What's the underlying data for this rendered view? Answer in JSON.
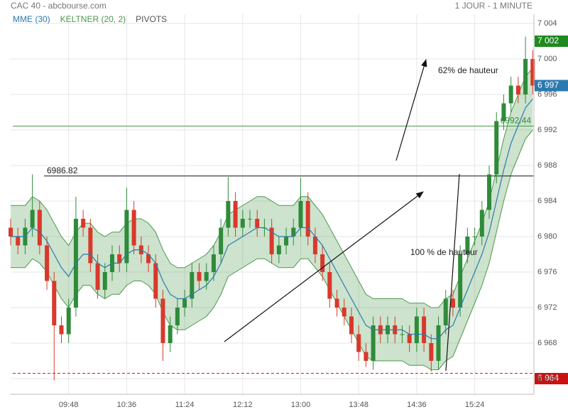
{
  "chart_data": {
    "type": "candlestick",
    "title": "CAC 40 - abcbourse.com",
    "subtitle": "1 JOUR - 1 MINUTE",
    "legend": [
      {
        "name": "MME (30)",
        "color": "#2a7ab0"
      },
      {
        "name": "KELTNER (20, 2)",
        "color": "#4a9a4a"
      },
      {
        "name": "PIVOTS",
        "color": "#555555"
      }
    ],
    "x": [
      "09:00",
      "09:06",
      "09:12",
      "09:18",
      "09:24",
      "09:30",
      "09:36",
      "09:42",
      "09:48",
      "09:54",
      "10:00",
      "10:06",
      "10:12",
      "10:18",
      "10:24",
      "10:30",
      "10:36",
      "10:42",
      "10:48",
      "10:54",
      "11:00",
      "11:06",
      "11:12",
      "11:18",
      "11:24",
      "11:30",
      "11:36",
      "11:42",
      "11:48",
      "11:54",
      "12:00",
      "12:06",
      "12:12",
      "12:18",
      "12:24",
      "12:30",
      "12:36",
      "12:42",
      "12:48",
      "12:54",
      "13:00",
      "13:06",
      "13:12",
      "13:18",
      "13:24",
      "13:30",
      "13:36",
      "13:42",
      "13:48",
      "13:54",
      "14:00",
      "14:06",
      "14:12",
      "14:18",
      "14:24",
      "14:30",
      "14:36",
      "14:42",
      "14:48",
      "14:54",
      "15:00",
      "15:06",
      "15:12",
      "15:18",
      "15:24",
      "15:30",
      "15:36",
      "15:42",
      "15:48",
      "15:54",
      "16:00",
      "16:06",
      "16:12"
    ],
    "open": [
      6981,
      6980,
      6979,
      6981,
      6983,
      6979,
      6975,
      6970,
      6969,
      6972,
      6982,
      6981,
      6977,
      6974,
      6976,
      6978,
      6977,
      6983,
      6979,
      6978,
      6977,
      6973,
      6968,
      6970,
      6972,
      6973,
      6976,
      6975,
      6976,
      6978,
      6981,
      6984,
      6981,
      6982,
      6982,
      6981,
      6981,
      6978,
      6979,
      6980,
      6981,
      6984,
      6980,
      6978,
      6976,
      6973,
      6972,
      6971,
      6969,
      6967,
      6966,
      6970,
      6969,
      6970,
      6969,
      6969,
      6968,
      6971,
      6968,
      6966,
      6970,
      6973,
      6972,
      6978,
      6980,
      6980,
      6983,
      6987,
      6993,
      6995,
      6997,
      6996,
      7000
    ],
    "high": [
      6982,
      6981,
      6982,
      6987,
      6984,
      6980,
      6976,
      6971,
      6973,
      6984.5,
      6983,
      6982,
      6978,
      6977,
      6979,
      6979,
      6985.5,
      6984,
      6980,
      6979,
      6978,
      6974,
      6971,
      6973,
      6974,
      6977,
      6977,
      6977,
      6979,
      6982,
      6986.7,
      6985,
      6983,
      6983,
      6983,
      6982,
      6982,
      6980,
      6981,
      6982,
      6986.6,
      6985,
      6981,
      6979,
      6977,
      6974,
      6973,
      6972,
      6970,
      6968,
      6971,
      6971,
      6971,
      6971,
      6970,
      6970,
      6972,
      6972,
      6969,
      6971,
      6974,
      6974,
      6979,
      6981,
      6981,
      6984,
      6988,
      6994,
      6996,
      6998,
      6998,
      7002.5,
      7001
    ],
    "low": [
      6979,
      6978,
      6978,
      6980,
      6978,
      6974,
      6963.8,
      6968,
      6968,
      6971,
      6980,
      6976,
      6973,
      6973,
      6975,
      6976,
      6976,
      6978,
      6977,
      6976,
      6972,
      6966,
      6967,
      6969,
      6971,
      6972,
      6974,
      6974,
      6975,
      6977,
      6980,
      6980,
      6980,
      6981,
      6980,
      6980,
      6977,
      6977,
      6978,
      6979,
      6980,
      6979,
      6977,
      6975,
      6972,
      6971,
      6970,
      6968,
      6966,
      6965.3,
      6965,
      6968,
      6968,
      6968,
      6968,
      6967,
      6967,
      6967,
      6964.8,
      6965,
      6969,
      6971,
      6971,
      6977,
      6979,
      6979,
      6982,
      6986,
      6992,
      6994,
      6995,
      6995,
      6996
    ],
    "close": [
      6980,
      6979,
      6981,
      6983,
      6979,
      6975,
      6970,
      6969,
      6972,
      6982,
      6981,
      6977,
      6974,
      6976,
      6978,
      6977,
      6983,
      6979,
      6978,
      6977,
      6973,
      6968,
      6970,
      6972,
      6973,
      6976,
      6975,
      6976,
      6978,
      6981,
      6984,
      6981,
      6982,
      6982,
      6981,
      6981,
      6978,
      6979,
      6980,
      6981,
      6984,
      6980,
      6978,
      6976,
      6973,
      6972,
      6971,
      6969,
      6967,
      6966,
      6970,
      6969,
      6970,
      6969,
      6969,
      6968,
      6971,
      6968,
      6966,
      6970,
      6973,
      6972,
      6978,
      6980,
      6980,
      6983,
      6987,
      6993,
      6995,
      6997,
      6996,
      7000,
      6997
    ],
    "up_color": "#2e8b3a",
    "down_color": "#d8392b",
    "series": [
      {
        "name": "MME (30)",
        "color": "#2a7ab0",
        "values": [
          6980,
          6980,
          6980,
          6981,
          6980.5,
          6979.5,
          6978,
          6976.5,
          6975.5,
          6977,
          6978,
          6978,
          6977,
          6976.5,
          6977,
          6977,
          6978,
          6978.5,
          6978.5,
          6978,
          6977,
          6975,
          6973.5,
          6973,
          6973,
          6973.5,
          6974,
          6974.5,
          6975.5,
          6977,
          6979,
          6979.5,
          6980,
          6980.5,
          6981,
          6981,
          6980.5,
          6980,
          6980,
          6980,
          6981,
          6981,
          6980,
          6979,
          6977.5,
          6976,
          6974.5,
          6973,
          6971.5,
          6970,
          6969.5,
          6969.5,
          6969.5,
          6969.5,
          6969.5,
          6969,
          6969,
          6969,
          6968.5,
          6968.5,
          6969.5,
          6970,
          6972,
          6974,
          6976,
          6978,
          6980.5,
          6984,
          6987.5,
          6990.5,
          6992.5,
          6994.5,
          6995.5
        ]
      },
      {
        "name": "KELTNER (20, 2)",
        "color": "#4a9a4a",
        "values": [
          6983.5,
          6983.5,
          6983.5,
          6984.5,
          6984,
          6983,
          6981.5,
          6980,
          6979,
          6980.5,
          6981.5,
          6981.5,
          6980.5,
          6980,
          6980.5,
          6980.5,
          6981.5,
          6982,
          6982,
          6981.5,
          6980.5,
          6978.5,
          6977,
          6976.5,
          6976.5,
          6977,
          6977.5,
          6978,
          6979,
          6980.5,
          6982.5,
          6983,
          6983.5,
          6984,
          6984.5,
          6984.5,
          6984,
          6983.5,
          6983.5,
          6983.5,
          6984.5,
          6984.5,
          6983.5,
          6982.5,
          6981,
          6979.5,
          6978,
          6976.5,
          6975,
          6973.5,
          6973,
          6973,
          6973,
          6973,
          6973,
          6972.5,
          6972.5,
          6972.5,
          6972,
          6972,
          6973,
          6973.5,
          6975.5,
          6977.5,
          6979.5,
          6981.5,
          6984,
          6987.5,
          6991,
          6994,
          6996,
          6998,
          6999
        ],
        "lower": [
          6976.5,
          6976.5,
          6976.5,
          6977.5,
          6977,
          6976,
          6974.5,
          6973,
          6972,
          6973.5,
          6974.5,
          6974.5,
          6973.5,
          6973,
          6973.5,
          6973.5,
          6974.5,
          6975,
          6975,
          6974.5,
          6973.5,
          6971.5,
          6970,
          6969.5,
          6969.5,
          6970,
          6970.5,
          6971,
          6972,
          6973.5,
          6975.5,
          6976,
          6976.5,
          6977,
          6977.5,
          6977.5,
          6977,
          6976.5,
          6976.5,
          6976.5,
          6977.5,
          6977.5,
          6976.5,
          6975.5,
          6974,
          6972.5,
          6971,
          6969.5,
          6968,
          6966.5,
          6966,
          6966,
          6966,
          6966,
          6966,
          6965.5,
          6965.5,
          6965.5,
          6965,
          6965,
          6966,
          6966.5,
          6968.5,
          6970.5,
          6972.5,
          6974.5,
          6977,
          6980.5,
          6984,
          6987,
          6989,
          6991,
          6992
        ]
      }
    ],
    "resistance": 6986.82,
    "pivot": 6992.44,
    "support": 6964.6,
    "price_badges": [
      {
        "value": 7002,
        "label": "7 002",
        "color": "#1f8a1f"
      },
      {
        "value": 6997,
        "label": "6 997",
        "color": "#2a7ab0"
      },
      {
        "value": 6964,
        "label": "6 964",
        "color": "#cc1111"
      }
    ],
    "annotations": [
      "62% de hauteur",
      "100 % de hauteur"
    ],
    "xlim": [
      "09:00",
      "16:13"
    ],
    "xticks": [
      "09:48",
      "10:36",
      "11:24",
      "12:12",
      "13:00",
      "13:48",
      "14:36",
      "15:24"
    ],
    "ylim": [
      6962.24,
      7005.04
    ],
    "yticks": [
      {
        "value": 6964,
        "label": "6 964"
      },
      {
        "value": 6968,
        "label": "6 968"
      },
      {
        "value": 6972,
        "label": "6 972"
      },
      {
        "value": 6976,
        "label": "6 976"
      },
      {
        "value": 6980,
        "label": "6 980"
      },
      {
        "value": 6984,
        "label": "6 984"
      },
      {
        "value": 6988,
        "label": "6 988"
      },
      {
        "value": 6992,
        "label": "6 992"
      },
      {
        "value": 6996,
        "label": "6 996"
      },
      {
        "value": 7000,
        "label": "7 000"
      },
      {
        "value": 7004,
        "label": "7 004"
      }
    ],
    "grid": true
  }
}
